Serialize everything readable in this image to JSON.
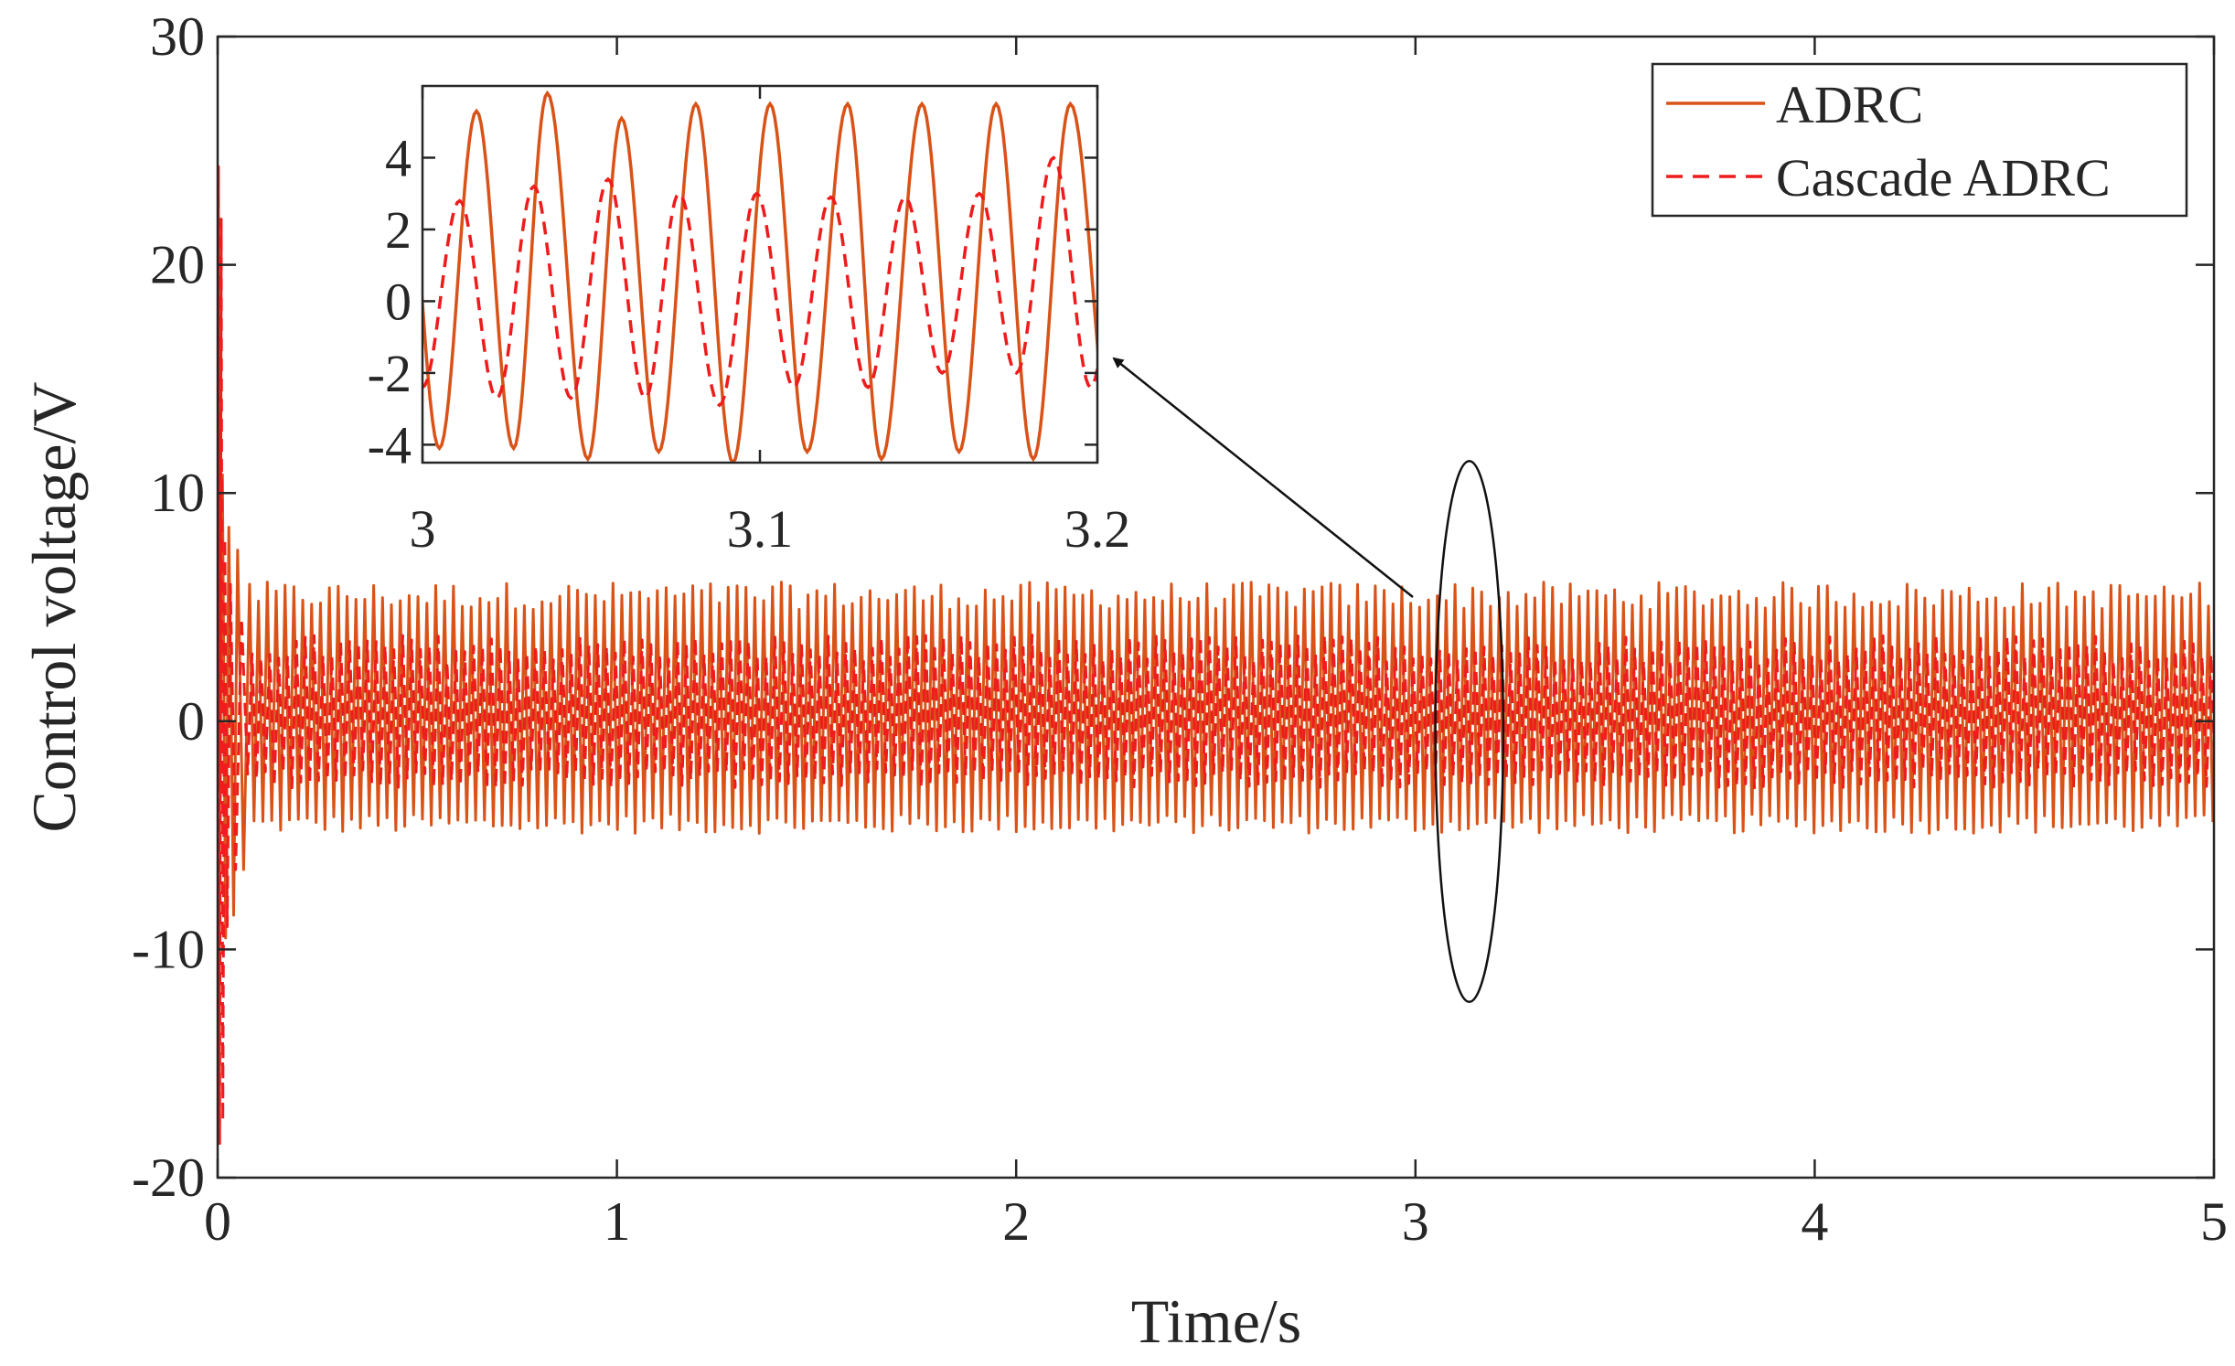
{
  "chart_data": {
    "type": "line",
    "xlabel": "Time/s",
    "ylabel": "Control voltage/V",
    "xlim": [
      0,
      5
    ],
    "ylim": [
      -20,
      30
    ],
    "xticks": [
      "0",
      "1",
      "2",
      "3",
      "4",
      "5"
    ],
    "yticks": [
      "-20",
      "-10",
      "0",
      "10",
      "20",
      "30"
    ],
    "grid": false,
    "legend_position": "top-right",
    "colors": {
      "adrc": "#D95319",
      "cascade": "#EE1C1C",
      "frame": "#262626"
    },
    "series": [
      {
        "name": "ADRC",
        "style": "solid",
        "color": "#D95319",
        "amplitude_min": -4.5,
        "amplitude_max": 5.5,
        "period_s": 0.0222,
        "transient": [
          {
            "x": 0.0,
            "y": 0.0
          },
          {
            "x": 0.003,
            "y": 13.5
          },
          {
            "x": 0.006,
            "y": -3.0
          },
          {
            "x": 0.012,
            "y": 10.8
          },
          {
            "x": 0.02,
            "y": -9.5
          },
          {
            "x": 0.028,
            "y": 8.5
          },
          {
            "x": 0.04,
            "y": -8.5
          },
          {
            "x": 0.05,
            "y": 7.5
          },
          {
            "x": 0.065,
            "y": -6.5
          },
          {
            "x": 0.08,
            "y": 6.0
          }
        ]
      },
      {
        "name": "Cascade ADRC",
        "style": "dashed",
        "color": "#EE1C1C",
        "amplitude_min": -2.5,
        "amplitude_max": 3.2,
        "period_s": 0.0222,
        "transient": [
          {
            "x": 0.0,
            "y": 0.0
          },
          {
            "x": 0.002,
            "y": 24.3
          },
          {
            "x": 0.005,
            "y": -18.5
          },
          {
            "x": 0.009,
            "y": 22.0
          },
          {
            "x": 0.013,
            "y": -17.5
          },
          {
            "x": 0.018,
            "y": 8.0
          },
          {
            "x": 0.024,
            "y": -9.0
          },
          {
            "x": 0.032,
            "y": 6.0
          },
          {
            "x": 0.045,
            "y": -6.5
          },
          {
            "x": 0.06,
            "y": 4.5
          }
        ]
      }
    ],
    "inset": {
      "xlim": [
        3.0,
        3.2
      ],
      "ylim": [
        -4.5,
        6.0
      ],
      "xticks": [
        "3",
        "3.1",
        "3.2"
      ],
      "yticks": [
        "-4",
        "-2",
        "0",
        "2",
        "4"
      ],
      "adrc_peaks": [
        {
          "x": 3.016,
          "y": 5.3
        },
        {
          "x": 3.037,
          "y": 5.8
        },
        {
          "x": 3.059,
          "y": 5.1
        },
        {
          "x": 3.081,
          "y": 5.5
        },
        {
          "x": 3.103,
          "y": 5.5
        },
        {
          "x": 3.126,
          "y": 5.5
        },
        {
          "x": 3.148,
          "y": 5.5
        },
        {
          "x": 3.17,
          "y": 5.5
        },
        {
          "x": 3.192,
          "y": 5.5
        }
      ],
      "adrc_troughs": [
        {
          "x": 3.005,
          "y": -4.1
        },
        {
          "x": 3.027,
          "y": -4.1
        },
        {
          "x": 3.049,
          "y": -4.4
        },
        {
          "x": 3.07,
          "y": -4.2
        },
        {
          "x": 3.092,
          "y": -4.5
        },
        {
          "x": 3.114,
          "y": -4.2
        },
        {
          "x": 3.136,
          "y": -4.4
        },
        {
          "x": 3.159,
          "y": -4.2
        },
        {
          "x": 3.181,
          "y": -4.4
        }
      ],
      "cascade_peaks": [
        {
          "x": 3.011,
          "y": 2.8
        },
        {
          "x": 3.033,
          "y": 3.2
        },
        {
          "x": 3.055,
          "y": 3.4
        },
        {
          "x": 3.076,
          "y": 3.0
        },
        {
          "x": 3.099,
          "y": 3.0
        },
        {
          "x": 3.121,
          "y": 2.9
        },
        {
          "x": 3.143,
          "y": 2.9
        },
        {
          "x": 3.165,
          "y": 3.0
        },
        {
          "x": 3.187,
          "y": 4.0
        }
      ],
      "cascade_troughs": [
        {
          "x": 3.0,
          "y": -2.4
        },
        {
          "x": 3.022,
          "y": -2.7
        },
        {
          "x": 3.044,
          "y": -2.7
        },
        {
          "x": 3.066,
          "y": -2.7
        },
        {
          "x": 3.088,
          "y": -2.9
        },
        {
          "x": 3.11,
          "y": -2.4
        },
        {
          "x": 3.132,
          "y": -2.4
        },
        {
          "x": 3.154,
          "y": -2.0
        },
        {
          "x": 3.176,
          "y": -2.0
        },
        {
          "x": 3.198,
          "y": -2.4
        }
      ]
    },
    "annotation": {
      "type": "ellipse-with-arrow",
      "x_range": [
        3.05,
        3.22
      ],
      "y_range": [
        -12.3,
        11.4
      ]
    }
  }
}
